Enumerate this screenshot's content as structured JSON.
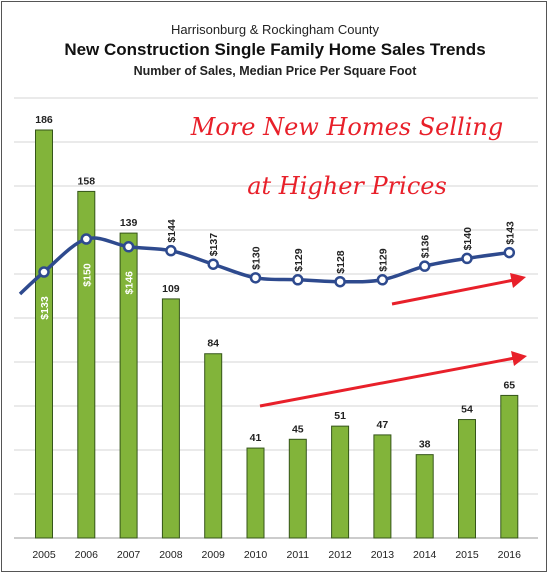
{
  "chart_data": {
    "type": "bar",
    "supertitle": "Harrisonburg & Rockingham County",
    "title": "New Construction Single Family Home Sales Trends",
    "subtitle": "Number of Sales, Median Price Per Square Foot",
    "categories": [
      "2005",
      "2006",
      "2007",
      "2008",
      "2009",
      "2010",
      "2011",
      "2012",
      "2013",
      "2014",
      "2015",
      "2016"
    ],
    "series": [
      {
        "type": "bar",
        "values": [
          186,
          158,
          139,
          109,
          84,
          41,
          45,
          51,
          47,
          38,
          54,
          65
        ],
        "labels": [
          "186",
          "158",
          "139",
          "109",
          "84",
          "41",
          "45",
          "51",
          "47",
          "38",
          "54",
          "65"
        ]
      },
      {
        "type": "line",
        "values": [
          133,
          150,
          146,
          144,
          137,
          130,
          129,
          128,
          129,
          136,
          140,
          143
        ],
        "labels": [
          "$133",
          "$150",
          "$146",
          "$144",
          "$137",
          "$130",
          "$129",
          "$128",
          "$129",
          "$136",
          "$140",
          "$143"
        ]
      }
    ],
    "annotations": [
      "More New Homes Selling",
      "at Higher Prices"
    ],
    "grid": true,
    "legend": "none",
    "colors": {
      "bar": "#82b43a",
      "bar_edge": "#35551a",
      "line": "#2e4a8e",
      "arrow": "#e8202a",
      "grid": "#d4d4d4"
    }
  }
}
